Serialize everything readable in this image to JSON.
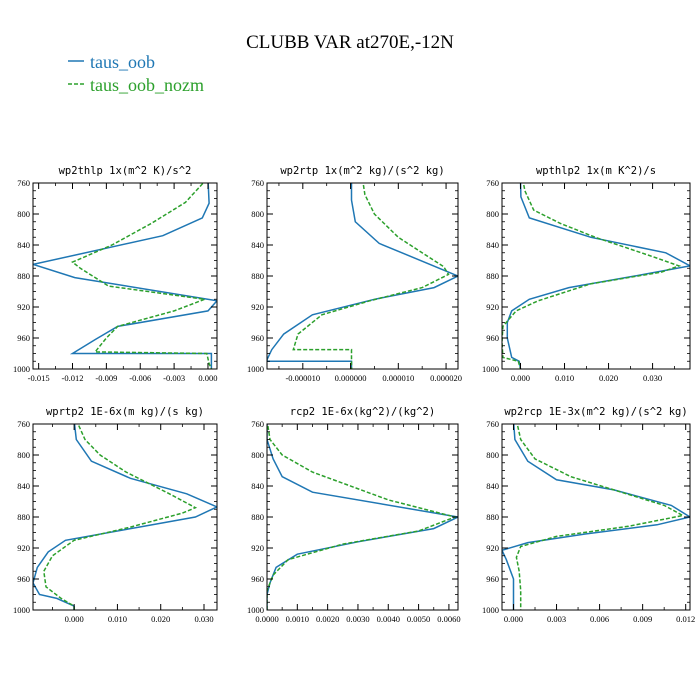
{
  "page": {
    "title": "CLUBB VAR at270E,-12N"
  },
  "colors": {
    "series1": "#1f77b4",
    "series2": "#2ca02c",
    "axis": "#000000",
    "background": "#ffffff"
  },
  "legend": {
    "placement": "top-left",
    "items": [
      {
        "label": "taus_oob",
        "color": "#1f77b4",
        "style": "solid"
      },
      {
        "label": "taus_oob_nozm",
        "color": "#2ca02c",
        "style": "dashed"
      }
    ]
  },
  "chart_data": [
    {
      "type": "line",
      "title": "wp2thlp  1x(m^2 K)/s^2",
      "xlabel": "",
      "ylabel": "",
      "xlim": [
        -0.0155,
        0.0008
      ],
      "ylim": [
        760,
        1000
      ],
      "y_inverted": true,
      "xticks": [
        -0.015,
        -0.012,
        -0.009,
        -0.006,
        -0.003,
        0.0
      ],
      "xtick_labels": [
        "-0.015",
        "-0.012",
        "-0.009",
        "-0.006",
        "-0.003",
        "0.000"
      ],
      "yticks": [
        760,
        800,
        840,
        880,
        920,
        960,
        1000
      ],
      "ytick_labels": [
        "760",
        "800",
        "840",
        "880",
        "920",
        "960",
        "1000"
      ],
      "grid": false,
      "series": [
        {
          "name": "taus_oob",
          "points": [
            [
              0.0,
              755
            ],
            [
              0.0001,
              786
            ],
            [
              -0.0005,
              805
            ],
            [
              -0.004,
              828
            ],
            [
              -0.0155,
              865
            ],
            [
              -0.0118,
              882
            ],
            [
              0.0008,
              912
            ],
            [
              0.0,
              925
            ],
            [
              -0.008,
              945
            ],
            [
              -0.01,
              962
            ],
            [
              -0.012,
              980
            ],
            [
              0.0003,
              980
            ],
            [
              0.0003,
              1000
            ]
          ]
        },
        {
          "name": "taus_oob_nozm",
          "points": [
            [
              -0.0001,
              755
            ],
            [
              -0.002,
              785
            ],
            [
              -0.005,
              812
            ],
            [
              -0.0085,
              840
            ],
            [
              -0.012,
              862
            ],
            [
              -0.0113,
              870
            ],
            [
              -0.0088,
              893
            ],
            [
              -0.0003,
              910
            ],
            [
              -0.003,
              925
            ],
            [
              -0.008,
              945
            ],
            [
              -0.009,
              960
            ],
            [
              -0.01,
              978
            ],
            [
              -0.0001,
              980
            ],
            [
              0.0001,
              993
            ],
            [
              0.0003,
              1000
            ]
          ]
        }
      ]
    },
    {
      "type": "line",
      "title": "wp2rtp  1x(m^2 kg)/(s^2 kg)",
      "xlabel": "",
      "ylabel": "",
      "xlim": [
        -1.75e-05,
        2.25e-05
      ],
      "ylim": [
        760,
        1000
      ],
      "y_inverted": true,
      "xticks": [
        -1e-05,
        0.0,
        1e-05,
        2e-05
      ],
      "xtick_labels": [
        "-0.000010",
        "0.000000",
        "0.000010",
        "0.000020"
      ],
      "yticks": [
        760,
        800,
        840,
        880,
        920,
        960,
        1000
      ],
      "ytick_labels": [
        "760",
        "800",
        "840",
        "880",
        "920",
        "960",
        "1000"
      ],
      "grid": false,
      "series": [
        {
          "name": "taus_oob",
          "points": [
            [
              2e-07,
              755
            ],
            [
              2e-07,
              782
            ],
            [
              1e-06,
              810
            ],
            [
              6e-06,
              838
            ],
            [
              2.25e-05,
              880
            ],
            [
              1.75e-05,
              895
            ],
            [
              5e-06,
              910
            ],
            [
              -8e-06,
              930
            ],
            [
              -1.4e-05,
              955
            ],
            [
              -1.65e-05,
              975
            ],
            [
              -1.75e-05,
              988
            ],
            [
              -1.75e-05,
              990
            ],
            [
              2e-07,
              990
            ],
            [
              2e-07,
              1000
            ]
          ]
        },
        {
          "name": "taus_oob_nozm",
          "points": [
            [
              2.5e-06,
              755
            ],
            [
              3e-06,
              775
            ],
            [
              5e-06,
              800
            ],
            [
              1e-05,
              830
            ],
            [
              1.95e-05,
              868
            ],
            [
              2.05e-05,
              878
            ],
            [
              1.5e-05,
              895
            ],
            [
              4e-06,
              912
            ],
            [
              -6e-06,
              930
            ],
            [
              -1.1e-05,
              955
            ],
            [
              -1.2e-05,
              975
            ],
            [
              2e-07,
              975
            ],
            [
              2e-07,
              1000
            ]
          ]
        }
      ]
    },
    {
      "type": "line",
      "title": "wpthlp2  1x(m K^2)/s",
      "xlabel": "",
      "ylabel": "",
      "xlim": [
        -0.0042,
        0.0385
      ],
      "ylim": [
        760,
        1000
      ],
      "y_inverted": true,
      "xticks": [
        0.0,
        0.01,
        0.02,
        0.03
      ],
      "xtick_labels": [
        "0.000",
        "0.010",
        "0.020",
        "0.030"
      ],
      "yticks": [
        760,
        800,
        840,
        880,
        920,
        960,
        1000
      ],
      "ytick_labels": [
        "760",
        "800",
        "840",
        "880",
        "920",
        "960",
        "1000"
      ],
      "grid": false,
      "series": [
        {
          "name": "taus_oob",
          "points": [
            [
              0.0,
              755
            ],
            [
              0.0001,
              778
            ],
            [
              0.002,
              805
            ],
            [
              0.016,
              830
            ],
            [
              0.033,
              850
            ],
            [
              0.0385,
              867
            ],
            [
              0.028,
              878
            ],
            [
              0.011,
              895
            ],
            [
              0.002,
              910
            ],
            [
              -0.002,
              925
            ],
            [
              -0.003,
              940
            ],
            [
              -0.003,
              960
            ],
            [
              -0.002,
              985
            ],
            [
              -0.0003,
              990
            ],
            [
              0.0,
              1000
            ]
          ]
        },
        {
          "name": "taus_oob_nozm",
          "points": [
            [
              0.0005,
              755
            ],
            [
              0.001,
              770
            ],
            [
              0.003,
              795
            ],
            [
              0.009,
              812
            ],
            [
              0.017,
              830
            ],
            [
              0.03,
              855
            ],
            [
              0.036,
              867
            ],
            [
              0.032,
              875
            ],
            [
              0.016,
              890
            ],
            [
              0.004,
              912
            ],
            [
              -0.001,
              925
            ],
            [
              -0.004,
              945
            ],
            [
              -0.0042,
              965
            ],
            [
              -0.004,
              985
            ],
            [
              -0.0005,
              990
            ],
            [
              0.0,
              1000
            ]
          ]
        }
      ]
    },
    {
      "type": "line",
      "title": "wprtp2  1E-6x(m kg)/(s kg)",
      "xlabel": "",
      "ylabel": "",
      "xlim": [
        -0.0095,
        0.033
      ],
      "ylim": [
        760,
        1000
      ],
      "y_inverted": true,
      "xticks": [
        0.0,
        0.01,
        0.02,
        0.03
      ],
      "xtick_labels": [
        "0.000",
        "0.010",
        "0.020",
        "0.030"
      ],
      "yticks": [
        760,
        800,
        840,
        880,
        920,
        960,
        1000
      ],
      "ytick_labels": [
        "760",
        "800",
        "840",
        "880",
        "920",
        "960",
        "1000"
      ],
      "grid": false,
      "series": [
        {
          "name": "taus_oob",
          "points": [
            [
              0.0,
              755
            ],
            [
              0.0005,
              780
            ],
            [
              0.004,
              808
            ],
            [
              0.013,
              830
            ],
            [
              0.026,
              850
            ],
            [
              0.033,
              867
            ],
            [
              0.028,
              880
            ],
            [
              0.015,
              893
            ],
            [
              -0.002,
              910
            ],
            [
              -0.006,
              925
            ],
            [
              -0.0085,
              945
            ],
            [
              -0.0095,
              965
            ],
            [
              -0.008,
              980
            ],
            [
              -0.004,
              985
            ],
            [
              0.0,
              995
            ],
            [
              0.0,
              1000
            ]
          ]
        },
        {
          "name": "taus_oob_nozm",
          "points": [
            [
              0.0005,
              755
            ],
            [
              0.0025,
              780
            ],
            [
              0.006,
              800
            ],
            [
              0.012,
              822
            ],
            [
              0.022,
              850
            ],
            [
              0.028,
              868
            ],
            [
              0.025,
              875
            ],
            [
              0.013,
              893
            ],
            [
              0.0,
              910
            ],
            [
              -0.005,
              930
            ],
            [
              -0.007,
              950
            ],
            [
              -0.0065,
              970
            ],
            [
              -0.003,
              985
            ],
            [
              0.0,
              995
            ],
            [
              0.0,
              1000
            ]
          ]
        }
      ]
    },
    {
      "type": "line",
      "title": "rcp2  1E-6x(kg^2)/(kg^2)",
      "xlabel": "",
      "ylabel": "",
      "xlim": [
        0.0,
        0.0063
      ],
      "ylim": [
        760,
        1000
      ],
      "y_inverted": true,
      "xticks": [
        0.0,
        0.001,
        0.002,
        0.003,
        0.004,
        0.005,
        0.006
      ],
      "xtick_labels": [
        "0.0000",
        "0.0010",
        "0.0020",
        "0.0030",
        "0.0040",
        "0.0050",
        "0.0060"
      ],
      "yticks": [
        760,
        800,
        840,
        880,
        920,
        960,
        1000
      ],
      "ytick_labels": [
        "760",
        "800",
        "840",
        "880",
        "920",
        "960",
        "1000"
      ],
      "grid": false,
      "series": [
        {
          "name": "taus_oob",
          "points": [
            [
              0.0,
              755
            ],
            [
              0.0,
              780
            ],
            [
              0.0002,
              805
            ],
            [
              0.0005,
              828
            ],
            [
              0.0015,
              848
            ],
            [
              0.0063,
              880
            ],
            [
              0.0055,
              895
            ],
            [
              0.003,
              912
            ],
            [
              0.001,
              928
            ],
            [
              0.0003,
              945
            ],
            [
              0.0001,
              965
            ],
            [
              0.0,
              980
            ],
            [
              0.0,
              1000
            ]
          ]
        },
        {
          "name": "taus_oob_nozm",
          "points": [
            [
              0.0,
              755
            ],
            [
              0.0001,
              780
            ],
            [
              0.0005,
              800
            ],
            [
              0.0015,
              822
            ],
            [
              0.004,
              858
            ],
            [
              0.0062,
              880
            ],
            [
              0.005,
              898
            ],
            [
              0.0025,
              915
            ],
            [
              0.0007,
              935
            ],
            [
              0.0002,
              955
            ],
            [
              0.0,
              975
            ],
            [
              0.0,
              1000
            ]
          ]
        }
      ]
    },
    {
      "type": "line",
      "title": "wp2rcp  1E-3x(m^2 kg)/(s^2 kg)",
      "xlabel": "",
      "ylabel": "",
      "xlim": [
        -0.0008,
        0.0123
      ],
      "ylim": [
        760,
        1000
      ],
      "y_inverted": true,
      "xticks": [
        0.0,
        0.003,
        0.006,
        0.009,
        0.012
      ],
      "xtick_labels": [
        "0.000",
        "0.003",
        "0.006",
        "0.009",
        "0.012"
      ],
      "yticks": [
        760,
        800,
        840,
        880,
        920,
        960,
        1000
      ],
      "ytick_labels": [
        "760",
        "800",
        "840",
        "880",
        "920",
        "960",
        "1000"
      ],
      "grid": false,
      "series": [
        {
          "name": "taus_oob",
          "points": [
            [
              0.0,
              755
            ],
            [
              0.0001,
              780
            ],
            [
              0.001,
              808
            ],
            [
              0.003,
              832
            ],
            [
              0.007,
              845
            ],
            [
              0.011,
              865
            ],
            [
              0.0123,
              880
            ],
            [
              0.01,
              890
            ],
            [
              0.005,
              902
            ],
            [
              0.001,
              913
            ],
            [
              -0.0008,
              923
            ],
            [
              -0.0005,
              935
            ],
            [
              0.0,
              960
            ],
            [
              0.0,
              1000
            ]
          ]
        },
        {
          "name": "taus_oob_nozm",
          "points": [
            [
              0.0002,
              755
            ],
            [
              0.0005,
              780
            ],
            [
              0.0015,
              805
            ],
            [
              0.004,
              828
            ],
            [
              0.007,
              845
            ],
            [
              0.0105,
              865
            ],
            [
              0.0118,
              878
            ],
            [
              0.008,
              892
            ],
            [
              0.003,
              905
            ],
            [
              0.0005,
              918
            ],
            [
              0.0002,
              932
            ],
            [
              0.0004,
              950
            ],
            [
              0.0005,
              975
            ],
            [
              0.0005,
              1000
            ]
          ]
        }
      ]
    }
  ]
}
